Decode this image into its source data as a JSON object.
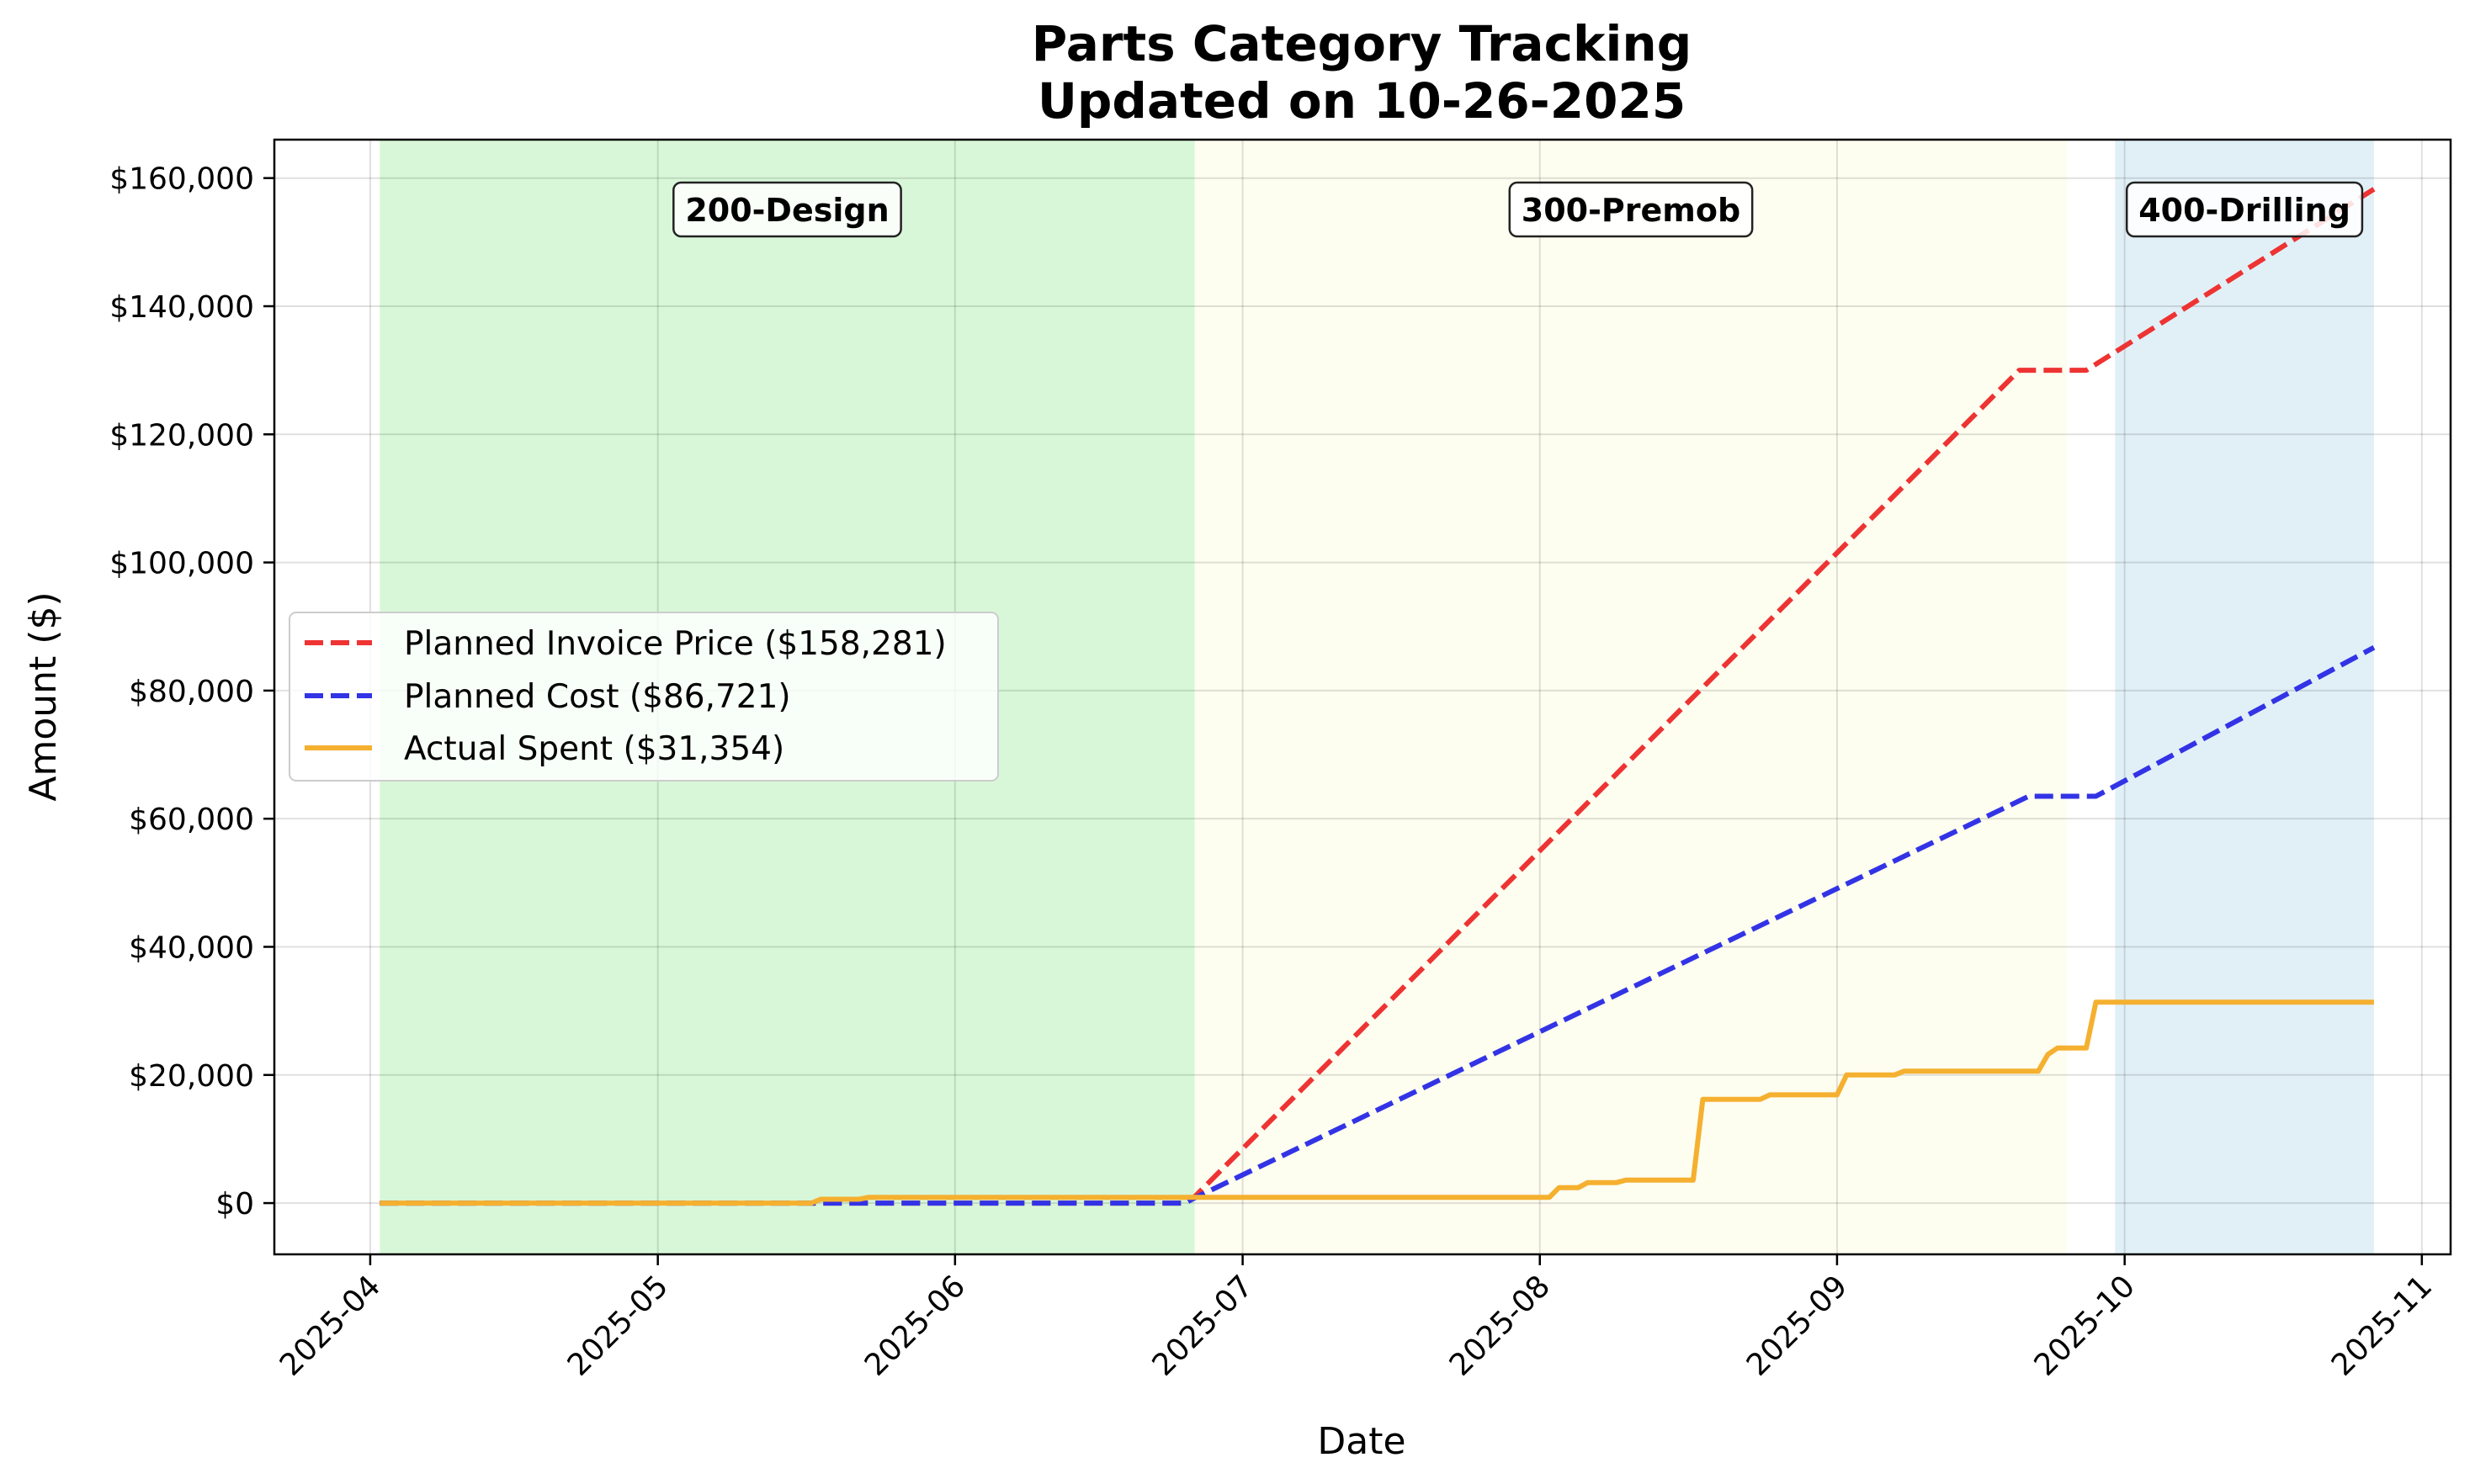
{
  "chart_data": {
    "type": "line",
    "title": "Parts Category Tracking",
    "subtitle": "Updated on 10-26-2025",
    "xlabel": "Date",
    "ylabel": "Amount ($)",
    "x_axis": "date",
    "xlim": [
      "2025-03-22",
      "2025-11-04"
    ],
    "ylim": [
      -8000,
      166000
    ],
    "grid": true,
    "legend_position": "center-left",
    "x_ticks": [
      "2025-04",
      "2025-05",
      "2025-06",
      "2025-07",
      "2025-08",
      "2025-09",
      "2025-10",
      "2025-11"
    ],
    "x_tick_dates": [
      "2025-04-01",
      "2025-05-01",
      "2025-06-01",
      "2025-07-01",
      "2025-08-01",
      "2025-09-01",
      "2025-10-01",
      "2025-11-01"
    ],
    "y_ticks": [
      0,
      20000,
      40000,
      60000,
      80000,
      100000,
      120000,
      140000,
      160000
    ],
    "y_tick_labels": [
      "$0",
      "$20,000",
      "$40,000",
      "$60,000",
      "$80,000",
      "$100,000",
      "$120,000",
      "$140,000",
      "$160,000"
    ],
    "phases": [
      {
        "label": "200-Design",
        "start": "2025-04-02",
        "end": "2025-06-26",
        "color": "#d8f7d8"
      },
      {
        "label": "300-Premob",
        "start": "2025-06-26",
        "end": "2025-09-25",
        "color": "#fdfdf0"
      },
      {
        "label": "400-Drilling",
        "start": "2025-09-30",
        "end": "2025-10-27",
        "color": "#e1f0f7"
      }
    ],
    "series": [
      {
        "name": "Planned Invoice Price ($158,281)",
        "color": "#ee3333",
        "style": "dashed",
        "points": [
          [
            "2025-04-02",
            0
          ],
          [
            "2025-06-25",
            0
          ],
          [
            "2025-06-26",
            1000
          ],
          [
            "2025-09-20",
            130000
          ],
          [
            "2025-09-27",
            130000
          ],
          [
            "2025-10-27",
            158281
          ]
        ]
      },
      {
        "name": "Planned Cost ($86,721)",
        "color": "#3333e6",
        "style": "dashed",
        "points": [
          [
            "2025-04-02",
            0
          ],
          [
            "2025-06-25",
            0
          ],
          [
            "2025-06-26",
            800
          ],
          [
            "2025-09-21",
            63500
          ],
          [
            "2025-09-28",
            63500
          ],
          [
            "2025-10-27",
            86721
          ]
        ]
      },
      {
        "name": "Actual Spent ($31,354)",
        "color": "#f5b030",
        "style": "solid",
        "points": [
          [
            "2025-04-02",
            0
          ],
          [
            "2025-05-17",
            0
          ],
          [
            "2025-05-18",
            600
          ],
          [
            "2025-05-22",
            600
          ],
          [
            "2025-05-23",
            900
          ],
          [
            "2025-08-02",
            900
          ],
          [
            "2025-08-03",
            2400
          ],
          [
            "2025-08-05",
            2400
          ],
          [
            "2025-08-06",
            3200
          ],
          [
            "2025-08-09",
            3200
          ],
          [
            "2025-08-10",
            3600
          ],
          [
            "2025-08-17",
            3600
          ],
          [
            "2025-08-18",
            16200
          ],
          [
            "2025-08-24",
            16200
          ],
          [
            "2025-08-25",
            16900
          ],
          [
            "2025-09-01",
            16900
          ],
          [
            "2025-09-02",
            20000
          ],
          [
            "2025-09-07",
            20000
          ],
          [
            "2025-09-08",
            20600
          ],
          [
            "2025-09-22",
            20600
          ],
          [
            "2025-09-23",
            23200
          ],
          [
            "2025-09-24",
            24200
          ],
          [
            "2025-09-27",
            24200
          ],
          [
            "2025-09-28",
            31354
          ],
          [
            "2025-10-27",
            31354
          ]
        ]
      }
    ]
  }
}
